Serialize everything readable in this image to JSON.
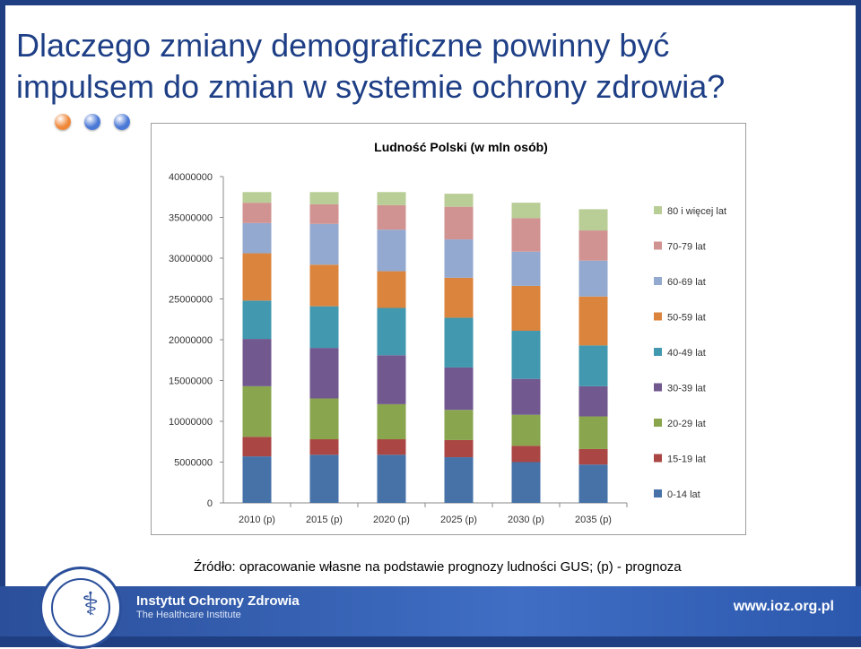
{
  "slide": {
    "title_line1": "Dlaczego zmiany demograficzne powinny być",
    "title_line2": "impulsem do zmian w systemie ochrony zdrowia?",
    "source_note": "Źródło: opracowanie własne na podstawie prognozy ludności GUS; (p) - prognoza",
    "footer": {
      "org_name": "Instytut Ochrony Zdrowia",
      "org_subtitle": "The Healthcare Institute",
      "website": "www.ioz.org.pl"
    },
    "dots": [
      {
        "color": "#f0883a",
        "icon": "orange-dot"
      },
      {
        "color": "#4a78d6",
        "icon": "blue-dot"
      },
      {
        "color": "#4a78d6",
        "icon": "blue-dot"
      }
    ]
  },
  "chart_data": {
    "type": "bar",
    "stacked": true,
    "title": "Ludność  Polski (w mln osób)",
    "categories": [
      "2010 (p)",
      "2015 (p)",
      "2020 (p)",
      "2025 (p)",
      "2030 (p)",
      "2035 (p)"
    ],
    "yticks": [
      "0",
      "5000000",
      "10000000",
      "15000000",
      "20000000",
      "25000000",
      "30000000",
      "35000000",
      "40000000"
    ],
    "ylim": [
      0,
      40000000
    ],
    "legend_position": "right",
    "series": [
      {
        "name": "0-14 lat",
        "color": "#4672a8",
        "values": [
          5700000,
          5900000,
          5900000,
          5600000,
          5000000,
          4700000
        ]
      },
      {
        "name": "15-19 lat",
        "color": "#aa4643",
        "values": [
          2400000,
          1900000,
          1900000,
          2100000,
          2000000,
          1900000
        ]
      },
      {
        "name": "20-29 lat",
        "color": "#89a54e",
        "values": [
          6200000,
          5000000,
          4300000,
          3700000,
          3800000,
          4000000
        ]
      },
      {
        "name": "30-39 lat",
        "color": "#71588f",
        "values": [
          5800000,
          6200000,
          6000000,
          5200000,
          4400000,
          3700000
        ]
      },
      {
        "name": "40-49 lat",
        "color": "#4198af",
        "values": [
          4700000,
          5100000,
          5800000,
          6100000,
          5900000,
          5000000
        ]
      },
      {
        "name": "50-59 lat",
        "color": "#db843d",
        "values": [
          5800000,
          5100000,
          4500000,
          4900000,
          5500000,
          6000000
        ]
      },
      {
        "name": "60-69 lat",
        "color": "#93a9cf",
        "values": [
          3700000,
          5000000,
          5100000,
          4700000,
          4200000,
          4400000
        ]
      },
      {
        "name": "70-79 lat",
        "color": "#d19392",
        "values": [
          2500000,
          2400000,
          3000000,
          4000000,
          4100000,
          3700000
        ]
      },
      {
        "name": "80 i więcej lat",
        "color": "#b9cd96",
        "values": [
          1300000,
          1500000,
          1600000,
          1600000,
          1900000,
          2600000
        ]
      }
    ]
  }
}
